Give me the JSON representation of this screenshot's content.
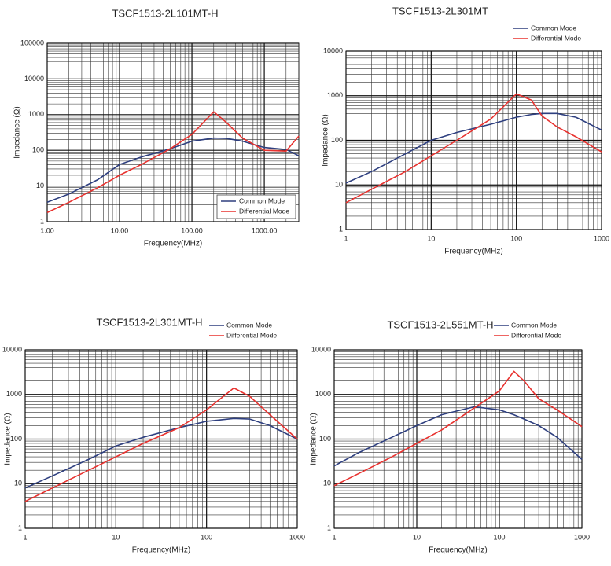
{
  "chart_data": [
    {
      "type": "line",
      "title": "TSCF1513-2L101MT-H",
      "xlabel": "Frequency(MHz)",
      "ylabel": "Impedance (Ω)",
      "xlog": true,
      "ylog": true,
      "grid": true,
      "minor_grid": true,
      "legend": "lower right",
      "xlim": [
        1,
        3000
      ],
      "ylim": [
        1,
        100000
      ],
      "xticks": [
        {
          "value": 1,
          "label": "1.00"
        },
        {
          "value": 10,
          "label": "10.00"
        },
        {
          "value": 100,
          "label": "100.00"
        },
        {
          "value": 1000,
          "label": "1000.00"
        }
      ],
      "yticks": [
        1,
        10,
        100,
        1000,
        10000,
        100000
      ],
      "x": [
        1,
        2,
        5,
        10,
        20,
        50,
        100,
        200,
        300,
        500,
        1000,
        2000,
        3000
      ],
      "series": [
        {
          "name": "Common Mode",
          "color": "#2e3f7f",
          "values": [
            3.5,
            6,
            15,
            40,
            65,
            110,
            180,
            220,
            215,
            180,
            120,
            105,
            70
          ]
        },
        {
          "name": "Differential Mode",
          "color": "#e8322f",
          "values": [
            1.8,
            3.5,
            9,
            20,
            40,
            110,
            280,
            1200,
            600,
            220,
            100,
            95,
            250
          ]
        }
      ]
    },
    {
      "type": "line",
      "title": "TSCF1513-2L301MT",
      "xlabel": "Frequency(MHz)",
      "ylabel": "Impedance (Ω)",
      "xlog": true,
      "ylog": true,
      "grid": true,
      "minor_grid": true,
      "legend": "upper right",
      "xlim": [
        1,
        1000
      ],
      "ylim": [
        1,
        10000
      ],
      "xticks": [
        1,
        10,
        100,
        1000
      ],
      "yticks": [
        1,
        10,
        100,
        1000,
        10000
      ],
      "x": [
        1,
        2,
        5,
        10,
        20,
        50,
        100,
        150,
        200,
        300,
        500,
        1000
      ],
      "series": [
        {
          "name": "Common Mode",
          "color": "#2e3f7f",
          "values": [
            11,
            20,
            50,
            100,
            150,
            230,
            330,
            380,
            400,
            400,
            330,
            170
          ]
        },
        {
          "name": "Differential Mode",
          "color": "#e8322f",
          "values": [
            4,
            8,
            20,
            45,
            100,
            300,
            1100,
            800,
            350,
            200,
            120,
            55
          ]
        }
      ]
    },
    {
      "type": "line",
      "title": "TSCF1513-2L301MT-H",
      "xlabel": "Frequency(MHz)",
      "ylabel": "Impedance (Ω)",
      "xlog": true,
      "ylog": true,
      "grid": true,
      "minor_grid": true,
      "legend": "upper right",
      "xlim": [
        1,
        1000
      ],
      "ylim": [
        1,
        10000
      ],
      "xticks": [
        1,
        10,
        100,
        1000
      ],
      "yticks": [
        1,
        10,
        100,
        1000,
        10000
      ],
      "x": [
        1,
        2,
        5,
        10,
        20,
        50,
        100,
        200,
        300,
        500,
        1000
      ],
      "series": [
        {
          "name": "Common Mode",
          "color": "#2e3f7f",
          "values": [
            8,
            15,
            35,
            70,
            110,
            180,
            250,
            290,
            280,
            200,
            100
          ]
        },
        {
          "name": "Differential Mode",
          "color": "#e8322f",
          "values": [
            4,
            8,
            20,
            40,
            80,
            180,
            450,
            1400,
            900,
            350,
            100
          ]
        }
      ]
    },
    {
      "type": "line",
      "title": "TSCF1513-2L551MT-H",
      "xlabel": "Frequency(MHz)",
      "ylabel": "Impedance (Ω)",
      "xlog": true,
      "ylog": true,
      "grid": true,
      "minor_grid": true,
      "legend": "upper right",
      "xlim": [
        1,
        1000
      ],
      "ylim": [
        1,
        10000
      ],
      "xticks": [
        1,
        10,
        100,
        1000
      ],
      "yticks": [
        1,
        10,
        100,
        1000,
        10000
      ],
      "x": [
        1,
        2,
        5,
        10,
        20,
        50,
        100,
        150,
        200,
        300,
        500,
        1000
      ],
      "series": [
        {
          "name": "Common Mode",
          "color": "#2e3f7f",
          "values": [
            25,
            50,
            110,
            200,
            350,
            530,
            450,
            350,
            280,
            200,
            110,
            35
          ]
        },
        {
          "name": "Differential Mode",
          "color": "#e8322f",
          "values": [
            9,
            17,
            40,
            80,
            160,
            500,
            1200,
            3300,
            2000,
            800,
            450,
            190
          ]
        }
      ]
    }
  ]
}
